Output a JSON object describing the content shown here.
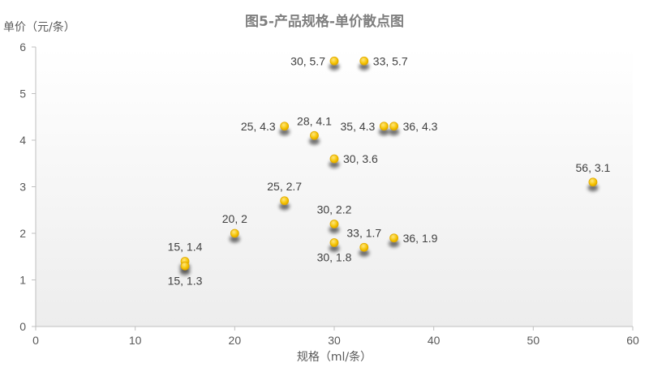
{
  "chart_data": {
    "type": "scatter",
    "title": "图5-产品规格-单价散点图",
    "xlabel": "规格（ml/条）",
    "ylabel": "单价（元/条）",
    "xlim": [
      0,
      60
    ],
    "ylim": [
      0,
      6
    ],
    "xticks": [
      0,
      10,
      20,
      30,
      40,
      50,
      60
    ],
    "yticks": [
      0,
      1,
      2,
      3,
      4,
      5,
      6
    ],
    "grid": false,
    "colors": {
      "point": "#f5c400",
      "point_stroke": "#e0a800",
      "axis": "#bfbfbf",
      "plot_top": "#ffffff",
      "plot_bottom": "#ededed"
    },
    "points": [
      {
        "x": 30,
        "y": 5.7,
        "label": "30, 5.7",
        "pos": "left"
      },
      {
        "x": 33,
        "y": 5.7,
        "label": "33, 5.7",
        "pos": "right"
      },
      {
        "x": 25,
        "y": 4.3,
        "label": "25, 4.3",
        "pos": "left"
      },
      {
        "x": 28,
        "y": 4.1,
        "label": "28, 4.1",
        "pos": "above"
      },
      {
        "x": 35,
        "y": 4.3,
        "label": "35, 4.3",
        "pos": "left"
      },
      {
        "x": 36,
        "y": 4.3,
        "label": "36, 4.3",
        "pos": "right"
      },
      {
        "x": 30,
        "y": 3.6,
        "label": "30, 3.6",
        "pos": "right"
      },
      {
        "x": 56,
        "y": 3.1,
        "label": "56, 3.1",
        "pos": "above"
      },
      {
        "x": 25,
        "y": 2.7,
        "label": "25, 2.7",
        "pos": "above"
      },
      {
        "x": 30,
        "y": 2.2,
        "label": "30, 2.2",
        "pos": "above"
      },
      {
        "x": 20,
        "y": 2,
        "label": "20, 2",
        "pos": "above"
      },
      {
        "x": 33,
        "y": 1.7,
        "label": "33, 1.7",
        "pos": "above"
      },
      {
        "x": 36,
        "y": 1.9,
        "label": "36, 1.9",
        "pos": "right"
      },
      {
        "x": 30,
        "y": 1.8,
        "label": "30, 1.8",
        "pos": "below"
      },
      {
        "x": 15,
        "y": 1.4,
        "label": "15, 1.4",
        "pos": "above"
      },
      {
        "x": 15,
        "y": 1.3,
        "label": "15, 1.3",
        "pos": "below"
      }
    ]
  }
}
